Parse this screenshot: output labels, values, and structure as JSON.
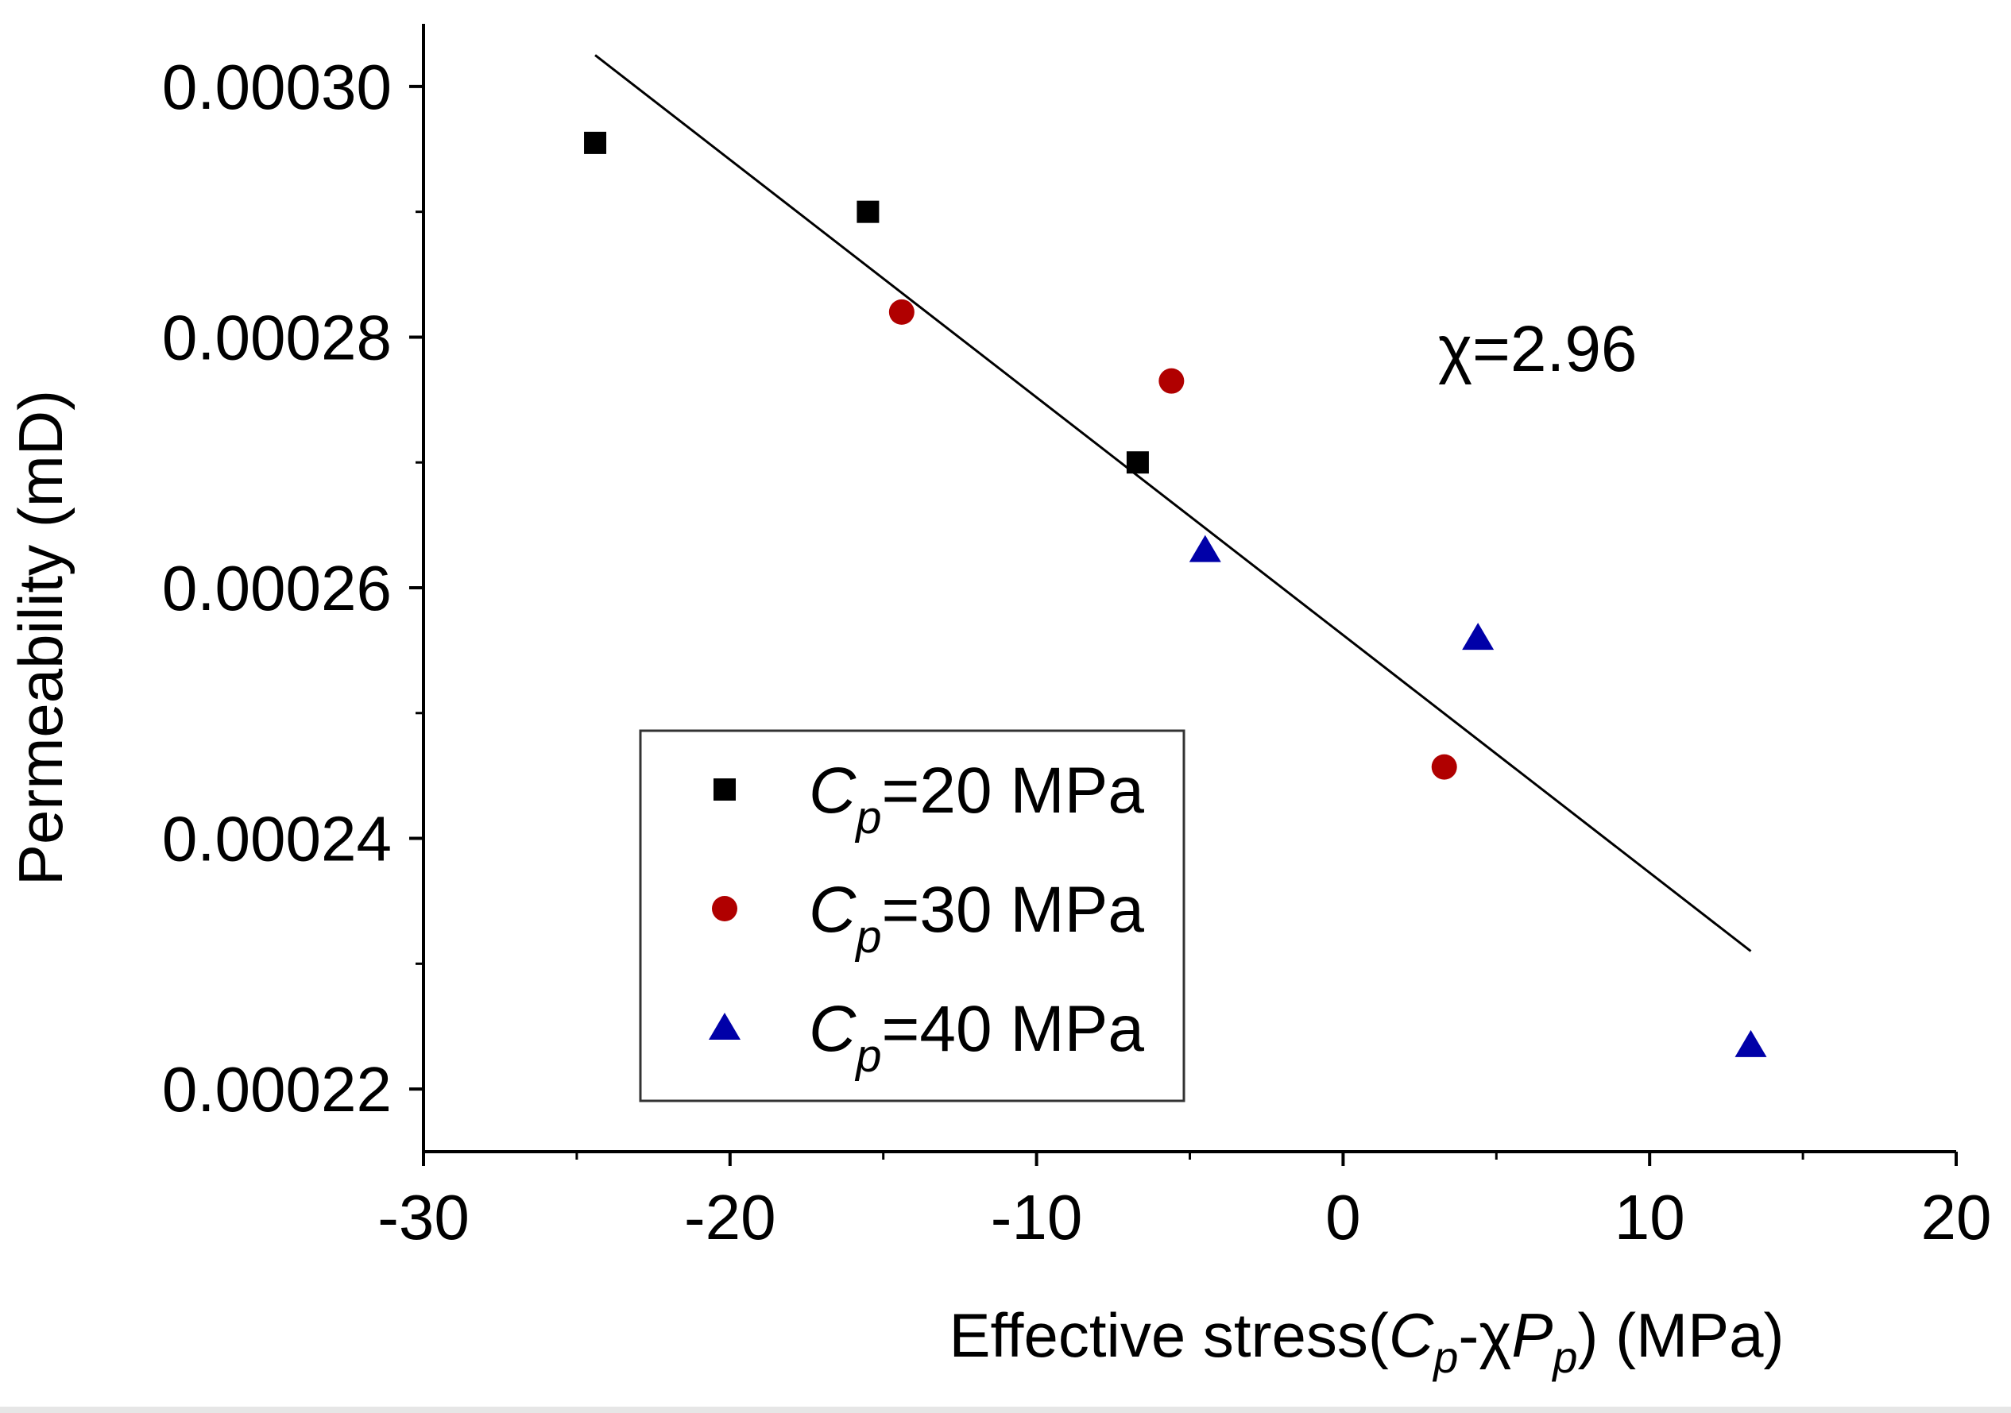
{
  "chart_data": {
    "type": "scatter",
    "xlim": [
      -30,
      20
    ],
    "ylim": [
      0.000215,
      0.000305
    ],
    "x_ticks": [
      -30,
      -20,
      -10,
      0,
      10,
      20
    ],
    "x_tick_labels": [
      "-30",
      "-20",
      "-10",
      "0",
      "10",
      "20"
    ],
    "x_minor_ticks": [
      -25,
      -15,
      -5,
      5,
      15
    ],
    "y_ticks": [
      0.00022,
      0.00024,
      0.00026,
      0.00028,
      0.0003
    ],
    "y_tick_labels": [
      "0.00022",
      "0.00024",
      "0.00026",
      "0.00028",
      "0.00030"
    ],
    "y_minor_ticks": [
      0.00023,
      0.00025,
      0.00027,
      0.00029
    ],
    "ylabel": "Permeability (mD)",
    "xlabel": {
      "prefix": "Effective stress(",
      "c": "C",
      "c_sub": "p",
      "middle": "-χ",
      "p": "P",
      "p_sub": "p",
      "suffix": ") (MPa)"
    },
    "annotation": "χ=2.96",
    "legend_position": "lower-left",
    "series": [
      {
        "legend_c": "C",
        "legend_sub": "p",
        "legend_rest": "=20 MPa",
        "marker": "square",
        "color": "#000000",
        "points": [
          [
            -24.4,
            0.0002955
          ],
          [
            -15.5,
            0.00029
          ],
          [
            -6.7,
            0.00027
          ]
        ]
      },
      {
        "legend_c": "C",
        "legend_sub": "p",
        "legend_rest": "=30 MPa",
        "marker": "circle",
        "color": "#b00000",
        "points": [
          [
            -14.4,
            0.000282
          ],
          [
            -5.6,
            0.0002765
          ],
          [
            3.3,
            0.0002457
          ]
        ]
      },
      {
        "legend_c": "C",
        "legend_sub": "p",
        "legend_rest": "=40 MPa",
        "marker": "triangle",
        "color": "#0000a8",
        "points": [
          [
            -4.5,
            0.000263
          ],
          [
            4.4,
            0.000256
          ],
          [
            13.3,
            0.0002235
          ]
        ]
      }
    ],
    "fit_line": {
      "x": [
        -24.4,
        13.3
      ],
      "y": [
        0.0003025,
        0.000231
      ]
    }
  }
}
